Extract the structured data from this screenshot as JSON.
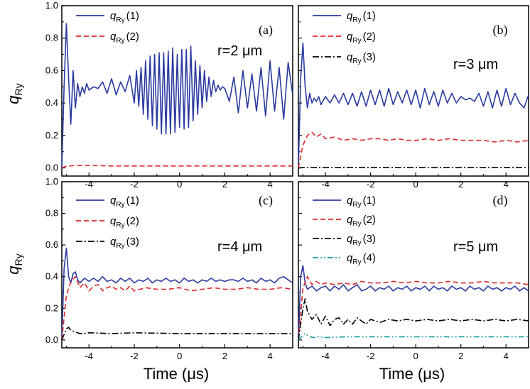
{
  "figure": {
    "y_axis_label": "q",
    "y_axis_label_sub": "Ry",
    "x_axis_label": "Time (μs)"
  },
  "chart_data": [
    {
      "type": "line",
      "panel": "(a)",
      "annotation": "r=2 μm",
      "xlim": [
        -5.2,
        5
      ],
      "ylim": [
        -0.05,
        1.0
      ],
      "xticks": [
        -4,
        -2,
        0,
        2,
        4
      ],
      "xtick_labels": [
        "-4",
        "-2",
        "0",
        "2",
        "4"
      ],
      "yticks": [
        0.0,
        0.2,
        0.4,
        0.6,
        0.8,
        1.0
      ],
      "ytick_labels": [
        "0.0",
        "0.2",
        "0.4",
        "0.6",
        "0.8",
        "1.0"
      ],
      "series": [
        {
          "name": "q_Ry(1)",
          "legend_main": "q",
          "legend_sub": "Ry",
          "legend_idx": "(1)",
          "color": "#2b3aa0",
          "dash": "solid",
          "x": [
            -5.2,
            -5.1,
            -5.0,
            -4.9,
            -4.8,
            -4.7,
            -4.6,
            -4.5,
            -4.4,
            -4.3,
            -4.2,
            -4.1,
            -4.0,
            -3.8,
            -3.6,
            -3.4,
            -3.2,
            -3.0,
            -2.8,
            -2.6,
            -2.4,
            -2.2,
            -2.0,
            -1.9,
            -1.8,
            -1.7,
            -1.6,
            -1.5,
            -1.4,
            -1.3,
            -1.2,
            -1.1,
            -1.0,
            -0.9,
            -0.8,
            -0.7,
            -0.6,
            -0.5,
            -0.4,
            -0.3,
            -0.2,
            -0.1,
            0.0,
            0.1,
            0.2,
            0.3,
            0.4,
            0.5,
            0.6,
            0.7,
            0.8,
            0.9,
            1.0,
            1.1,
            1.2,
            1.3,
            1.4,
            1.5,
            1.6,
            1.7,
            1.8,
            1.9,
            2.0,
            2.2,
            2.4,
            2.6,
            2.8,
            3.0,
            3.2,
            3.4,
            3.6,
            3.8,
            4.0,
            4.2,
            4.4,
            4.6,
            4.8,
            5.0
          ],
          "y": [
            0.0,
            0.5,
            0.89,
            0.55,
            0.27,
            0.6,
            0.37,
            0.52,
            0.44,
            0.5,
            0.46,
            0.52,
            0.48,
            0.5,
            0.49,
            0.53,
            0.46,
            0.55,
            0.45,
            0.53,
            0.47,
            0.57,
            0.4,
            0.6,
            0.38,
            0.62,
            0.33,
            0.66,
            0.3,
            0.69,
            0.26,
            0.7,
            0.24,
            0.71,
            0.21,
            0.71,
            0.21,
            0.72,
            0.21,
            0.74,
            0.22,
            0.7,
            0.25,
            0.73,
            0.24,
            0.73,
            0.25,
            0.75,
            0.29,
            0.66,
            0.33,
            0.63,
            0.37,
            0.6,
            0.41,
            0.56,
            0.44,
            0.54,
            0.47,
            0.51,
            0.48,
            0.5,
            0.49,
            0.41,
            0.56,
            0.34,
            0.6,
            0.37,
            0.58,
            0.35,
            0.62,
            0.32,
            0.66,
            0.35,
            0.62,
            0.3,
            0.65,
            0.45
          ]
        },
        {
          "name": "q_Ry(2)",
          "legend_main": "q",
          "legend_sub": "Ry",
          "legend_idx": "(2)",
          "color": "#e0262c",
          "dash": "dash",
          "x": [
            -5.2,
            -5.0,
            -4.6,
            -4.0,
            -3.0,
            -2.0,
            0.0,
            2.0,
            5.0
          ],
          "y": [
            0.0,
            0.01,
            0.015,
            0.015,
            0.012,
            0.012,
            0.012,
            0.012,
            0.012
          ]
        }
      ]
    },
    {
      "type": "line",
      "panel": "(b)",
      "annotation": "r=3 μm",
      "xlim": [
        -5.2,
        5
      ],
      "ylim": [
        -0.05,
        1.0
      ],
      "xticks": [
        -4,
        -2,
        0,
        2,
        4
      ],
      "xtick_labels": [
        "-4",
        "-2",
        "0",
        "2",
        "4"
      ],
      "yticks": [
        0.0,
        0.2,
        0.4,
        0.6,
        0.8,
        1.0
      ],
      "ytick_labels": [],
      "series": [
        {
          "name": "q_Ry(1)",
          "legend_main": "q",
          "legend_sub": "Ry",
          "legend_idx": "(1)",
          "color": "#2b3aa0",
          "dash": "solid",
          "x": [
            -5.2,
            -5.1,
            -5.0,
            -4.9,
            -4.8,
            -4.7,
            -4.6,
            -4.5,
            -4.4,
            -4.3,
            -4.2,
            -4.0,
            -3.8,
            -3.6,
            -3.4,
            -3.2,
            -3.0,
            -2.8,
            -2.6,
            -2.4,
            -2.2,
            -2.0,
            -1.8,
            -1.6,
            -1.4,
            -1.2,
            -1.0,
            -0.8,
            -0.6,
            -0.4,
            -0.2,
            0.0,
            0.2,
            0.4,
            0.6,
            0.8,
            1.0,
            1.2,
            1.4,
            1.6,
            1.8,
            2.0,
            2.2,
            2.4,
            2.6,
            2.8,
            3.0,
            3.2,
            3.4,
            3.6,
            3.8,
            4.0,
            4.2,
            4.4,
            4.6,
            4.8,
            5.0
          ],
          "y": [
            0.0,
            0.55,
            0.77,
            0.5,
            0.37,
            0.46,
            0.4,
            0.43,
            0.41,
            0.44,
            0.39,
            0.44,
            0.4,
            0.45,
            0.4,
            0.46,
            0.39,
            0.46,
            0.38,
            0.47,
            0.38,
            0.48,
            0.39,
            0.48,
            0.38,
            0.49,
            0.39,
            0.47,
            0.4,
            0.48,
            0.39,
            0.48,
            0.37,
            0.49,
            0.39,
            0.47,
            0.38,
            0.48,
            0.4,
            0.46,
            0.4,
            0.44,
            0.42,
            0.43,
            0.41,
            0.46,
            0.38,
            0.47,
            0.37,
            0.48,
            0.38,
            0.49,
            0.39,
            0.46,
            0.4,
            0.37,
            0.45
          ]
        },
        {
          "name": "q_Ry(2)",
          "legend_main": "q",
          "legend_sub": "Ry",
          "legend_idx": "(2)",
          "color": "#e0262c",
          "dash": "dash",
          "x": [
            -5.2,
            -5.0,
            -4.8,
            -4.6,
            -4.4,
            -4.2,
            -4.0,
            -3.6,
            -3.2,
            -2.8,
            -2.4,
            -2.0,
            -1.6,
            -1.2,
            -0.8,
            -0.4,
            0.0,
            0.5,
            1.0,
            1.5,
            2.0,
            2.5,
            3.0,
            3.5,
            4.0,
            4.5,
            5.0
          ],
          "y": [
            0.0,
            0.14,
            0.2,
            0.22,
            0.19,
            0.21,
            0.18,
            0.19,
            0.17,
            0.18,
            0.17,
            0.18,
            0.18,
            0.17,
            0.18,
            0.17,
            0.17,
            0.18,
            0.17,
            0.18,
            0.17,
            0.17,
            0.17,
            0.16,
            0.17,
            0.16,
            0.17
          ]
        },
        {
          "name": "q_Ry(3)",
          "legend_main": "q",
          "legend_sub": "Ry",
          "legend_idx": "(3)",
          "color": "#000000",
          "dash": "dashdot",
          "x": [
            -5.2,
            -5.0,
            0.0,
            5.0
          ],
          "y": [
            0.0,
            0.002,
            0.002,
            0.002
          ]
        }
      ]
    },
    {
      "type": "line",
      "panel": "(c)",
      "annotation": "r=4 μm",
      "xlim": [
        -5.2,
        5
      ],
      "ylim": [
        -0.05,
        1.0
      ],
      "xticks": [
        -4,
        -2,
        0,
        2,
        4
      ],
      "xtick_labels": [
        "-4",
        "-2",
        "0",
        "2",
        "4"
      ],
      "yticks": [
        0.0,
        0.2,
        0.4,
        0.6,
        0.8,
        1.0
      ],
      "ytick_labels": [
        "0.0",
        "0.2",
        "0.4",
        "0.6",
        "0.8",
        "1.0"
      ],
      "series": [
        {
          "name": "q_Ry(1)",
          "legend_main": "q",
          "legend_sub": "Ry",
          "legend_idx": "(1)",
          "color": "#2b3aa0",
          "dash": "solid",
          "x": [
            -5.2,
            -5.1,
            -5.0,
            -4.9,
            -4.8,
            -4.7,
            -4.6,
            -4.5,
            -4.4,
            -4.2,
            -4.0,
            -3.8,
            -3.6,
            -3.4,
            -3.2,
            -3.0,
            -2.8,
            -2.6,
            -2.4,
            -2.2,
            -2.0,
            -1.8,
            -1.6,
            -1.4,
            -1.2,
            -1.0,
            -0.8,
            -0.6,
            -0.4,
            -0.2,
            0.0,
            0.2,
            0.4,
            0.6,
            0.8,
            1.0,
            1.2,
            1.4,
            1.6,
            1.8,
            2.0,
            2.2,
            2.4,
            2.6,
            2.8,
            3.0,
            3.2,
            3.4,
            3.6,
            3.8,
            4.0,
            4.2,
            4.4,
            4.6,
            4.8,
            5.0
          ],
          "y": [
            0.0,
            0.45,
            0.58,
            0.4,
            0.36,
            0.42,
            0.43,
            0.38,
            0.36,
            0.39,
            0.37,
            0.39,
            0.37,
            0.4,
            0.37,
            0.38,
            0.36,
            0.39,
            0.37,
            0.39,
            0.36,
            0.38,
            0.37,
            0.39,
            0.36,
            0.38,
            0.37,
            0.39,
            0.37,
            0.38,
            0.36,
            0.39,
            0.37,
            0.38,
            0.36,
            0.38,
            0.37,
            0.39,
            0.37,
            0.38,
            0.37,
            0.38,
            0.38,
            0.37,
            0.39,
            0.37,
            0.38,
            0.36,
            0.39,
            0.37,
            0.38,
            0.36,
            0.39,
            0.4,
            0.38,
            0.36
          ]
        },
        {
          "name": "q_Ry(2)",
          "legend_main": "q",
          "legend_sub": "Ry",
          "legend_idx": "(2)",
          "color": "#e0262c",
          "dash": "dash",
          "x": [
            -5.2,
            -5.0,
            -4.8,
            -4.6,
            -4.4,
            -4.2,
            -4.0,
            -3.8,
            -3.6,
            -3.4,
            -3.2,
            -3.0,
            -2.8,
            -2.6,
            -2.4,
            -2.2,
            -2.0,
            -1.5,
            -1.0,
            -0.5,
            0.0,
            0.5,
            1.0,
            1.5,
            2.0,
            2.5,
            3.0,
            3.5,
            4.0,
            4.5,
            5.0
          ],
          "y": [
            0.0,
            0.28,
            0.37,
            0.4,
            0.33,
            0.36,
            0.31,
            0.34,
            0.35,
            0.31,
            0.33,
            0.34,
            0.32,
            0.33,
            0.31,
            0.34,
            0.31,
            0.33,
            0.32,
            0.32,
            0.33,
            0.31,
            0.32,
            0.33,
            0.32,
            0.32,
            0.33,
            0.32,
            0.32,
            0.33,
            0.32
          ]
        },
        {
          "name": "q_Ry(3)",
          "legend_main": "q",
          "legend_sub": "Ry",
          "legend_idx": "(3)",
          "color": "#000000",
          "dash": "dashdot",
          "x": [
            -5.2,
            -5.0,
            -4.9,
            -4.8,
            -4.6,
            -4.4,
            -4.2,
            -4.0,
            -3.0,
            -2.0,
            0.0,
            2.0,
            5.0
          ],
          "y": [
            0.0,
            0.07,
            0.08,
            0.06,
            0.05,
            0.04,
            0.04,
            0.045,
            0.04,
            0.045,
            0.04,
            0.04,
            0.04
          ]
        }
      ]
    },
    {
      "type": "line",
      "panel": "(d)",
      "annotation": "r=5 μm",
      "xlim": [
        -5.2,
        5
      ],
      "ylim": [
        -0.05,
        1.0
      ],
      "xticks": [
        -4,
        -2,
        0,
        2,
        4
      ],
      "xtick_labels": [
        "-4",
        "-2",
        "0",
        "2",
        "4"
      ],
      "yticks": [
        0.0,
        0.2,
        0.4,
        0.6,
        0.8,
        1.0
      ],
      "ytick_labels": [],
      "series": [
        {
          "name": "q_Ry(1)",
          "legend_main": "q",
          "legend_sub": "Ry",
          "legend_idx": "(1)",
          "color": "#2b3aa0",
          "dash": "solid",
          "x": [
            -5.2,
            -5.1,
            -5.0,
            -4.9,
            -4.8,
            -4.6,
            -4.4,
            -4.2,
            -4.0,
            -3.8,
            -3.6,
            -3.4,
            -3.2,
            -3.0,
            -2.8,
            -2.6,
            -2.4,
            -2.2,
            -2.0,
            -1.8,
            -1.6,
            -1.4,
            -1.2,
            -1.0,
            -0.8,
            -0.6,
            -0.4,
            -0.2,
            0.0,
            0.2,
            0.4,
            0.6,
            0.8,
            1.0,
            1.2,
            1.4,
            1.6,
            1.8,
            2.0,
            2.2,
            2.4,
            2.6,
            2.8,
            3.0,
            3.2,
            3.4,
            3.6,
            3.8,
            4.0,
            4.2,
            4.4,
            4.6,
            4.8,
            5.0
          ],
          "y": [
            0.0,
            0.4,
            0.47,
            0.36,
            0.32,
            0.34,
            0.31,
            0.33,
            0.34,
            0.31,
            0.34,
            0.32,
            0.35,
            0.31,
            0.33,
            0.35,
            0.31,
            0.32,
            0.34,
            0.31,
            0.33,
            0.32,
            0.34,
            0.31,
            0.33,
            0.32,
            0.34,
            0.31,
            0.33,
            0.32,
            0.34,
            0.31,
            0.34,
            0.32,
            0.33,
            0.31,
            0.34,
            0.32,
            0.33,
            0.31,
            0.34,
            0.32,
            0.33,
            0.31,
            0.34,
            0.32,
            0.33,
            0.31,
            0.33,
            0.32,
            0.34,
            0.31,
            0.33,
            0.31
          ]
        },
        {
          "name": "q_Ry(2)",
          "legend_main": "q",
          "legend_sub": "Ry",
          "legend_idx": "(2)",
          "color": "#e0262c",
          "dash": "dash",
          "x": [
            -5.2,
            -5.0,
            -4.8,
            -4.6,
            -4.4,
            -4.2,
            -4.0,
            -3.6,
            -3.2,
            -2.8,
            -2.4,
            -2.0,
            -1.5,
            -1.0,
            -0.5,
            0.0,
            0.5,
            1.0,
            1.5,
            2.0,
            2.5,
            3.0,
            3.5,
            4.0,
            4.5,
            5.0
          ],
          "y": [
            0.0,
            0.33,
            0.4,
            0.35,
            0.37,
            0.35,
            0.36,
            0.35,
            0.36,
            0.35,
            0.37,
            0.36,
            0.36,
            0.37,
            0.36,
            0.37,
            0.36,
            0.36,
            0.37,
            0.36,
            0.36,
            0.37,
            0.36,
            0.36,
            0.36,
            0.35
          ]
        },
        {
          "name": "q_Ry(3)",
          "legend_main": "q",
          "legend_sub": "Ry",
          "legend_idx": "(3)",
          "color": "#000000",
          "dash": "dashdot",
          "x": [
            -5.2,
            -5.0,
            -4.9,
            -4.8,
            -4.6,
            -4.4,
            -4.2,
            -4.0,
            -3.8,
            -3.6,
            -3.4,
            -3.2,
            -3.0,
            -2.8,
            -2.6,
            -2.4,
            -2.2,
            -2.0,
            -1.6,
            -1.2,
            -0.8,
            -0.4,
            0.0,
            0.5,
            1.0,
            1.5,
            2.0,
            2.5,
            3.0,
            3.5,
            4.0,
            4.5,
            5.0
          ],
          "y": [
            0.0,
            0.2,
            0.26,
            0.18,
            0.13,
            0.16,
            0.1,
            0.15,
            0.09,
            0.13,
            0.14,
            0.1,
            0.13,
            0.1,
            0.14,
            0.12,
            0.1,
            0.13,
            0.11,
            0.13,
            0.12,
            0.13,
            0.12,
            0.13,
            0.12,
            0.13,
            0.12,
            0.13,
            0.12,
            0.13,
            0.12,
            0.13,
            0.12
          ]
        },
        {
          "name": "q_Ry(4)",
          "legend_main": "q",
          "legend_sub": "Ry",
          "legend_idx": "(4)",
          "color": "#1a9a9a",
          "dash": "dashdotdot",
          "x": [
            -5.2,
            -5.0,
            -4.9,
            -4.7,
            -4.5,
            -4.3,
            -4.0,
            -3.0,
            -2.0,
            0.0,
            2.0,
            5.0
          ],
          "y": [
            0.0,
            0.03,
            0.04,
            0.02,
            0.015,
            0.02,
            0.015,
            0.02,
            0.02,
            0.02,
            0.02,
            0.02
          ]
        }
      ]
    }
  ]
}
